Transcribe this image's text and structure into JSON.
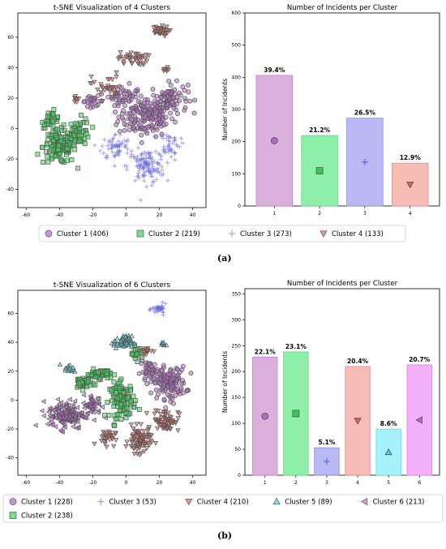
{
  "panel_labels": [
    "(a)",
    "(b)"
  ],
  "chart_data": [
    {
      "id": "tsne4",
      "type": "scatter",
      "title": "t-SNE Visualization of 4 Clusters",
      "xlabel": "",
      "ylabel": "",
      "xlim": [
        -65,
        48
      ],
      "ylim": [
        -52,
        76
      ],
      "xticks": [
        -60,
        -40,
        -20,
        0,
        20,
        40
      ],
      "yticks": [
        -40,
        -20,
        0,
        20,
        40,
        60
      ],
      "series": [
        {
          "name": "Cluster 1",
          "marker": "circle",
          "color": "#b36bc4",
          "blobs": [
            [
              12,
              8,
              15,
              12,
              160
            ],
            [
              26,
              20,
              10,
              9,
              80
            ],
            [
              -2,
              22,
              8,
              6,
              40
            ],
            [
              -20,
              18,
              6,
              3,
              25
            ]
          ]
        },
        {
          "name": "Cluster 2",
          "marker": "square",
          "color": "#3cd65a",
          "blobs": [
            [
              -40,
              -12,
              9,
              10,
              130
            ],
            [
              -28,
              -2,
              6,
              8,
              50
            ],
            [
              -45,
              6,
              5,
              5,
              30
            ]
          ]
        },
        {
          "name": "Cluster 3",
          "marker": "plus",
          "color": "#6a6ae0",
          "blobs": [
            [
              12,
              -25,
              10,
              10,
              120
            ],
            [
              -6,
              -12,
              8,
              8,
              60
            ],
            [
              26,
              -10,
              6,
              8,
              45
            ]
          ]
        },
        {
          "name": "Cluster 4",
          "marker": "tri_down",
          "color": "#e26a5a",
          "blobs": [
            [
              20,
              64,
              5,
              3,
              40
            ],
            [
              4,
              46,
              8,
              4,
              40
            ],
            [
              -12,
              28,
              8,
              8,
              30
            ],
            [
              24,
              38,
              2,
              2,
              8
            ],
            [
              -30,
              20,
              3,
              3,
              8
            ]
          ]
        }
      ],
      "legend": [
        {
          "label": "Cluster 1 (406)",
          "marker": "circle",
          "color": "#b36bc4"
        },
        {
          "label": "Cluster 2 (219)",
          "marker": "square",
          "color": "#3cd65a"
        },
        {
          "label": "Cluster 3 (273)",
          "marker": "plus",
          "color": "#6a6ae0"
        },
        {
          "label": "Cluster 4 (133)",
          "marker": "tri_down",
          "color": "#e26a5a"
        }
      ]
    },
    {
      "id": "bar4",
      "type": "bar",
      "title": "Number of Incidents per Cluster",
      "xlabel": "",
      "ylabel": "Number of Incidents",
      "categories": [
        "1",
        "2",
        "3",
        "4"
      ],
      "values": [
        406,
        219,
        273,
        133
      ],
      "percent_labels": [
        "39.4%",
        "21.2%",
        "26.5%",
        "12.9%"
      ],
      "colors": [
        "#dbb0dc",
        "#8ef0a8",
        "#b9b9f5",
        "#f7bcb6"
      ],
      "edge_colors": [
        "#c47fd0",
        "#5fd886",
        "#8b8be8",
        "#ec8c80"
      ],
      "markers": [
        "circle",
        "square",
        "plus",
        "tri_down"
      ],
      "marker_colors": [
        "#b06ac0",
        "#33cc55",
        "#6060d8",
        "#e0604e"
      ],
      "ylim": [
        0,
        600
      ],
      "yticks": [
        0,
        100,
        200,
        300,
        400,
        500,
        600
      ]
    },
    {
      "id": "tsne6",
      "type": "scatter",
      "title": "t-SNE Visualization of 6 Clusters",
      "xlabel": "",
      "ylabel": "",
      "xlim": [
        -65,
        48
      ],
      "ylim": [
        -52,
        76
      ],
      "xticks": [
        -60,
        -40,
        -20,
        0,
        20,
        40
      ],
      "yticks": [
        -40,
        -20,
        0,
        20,
        40,
        60
      ],
      "series": [
        {
          "name": "Cluster 1",
          "marker": "circle",
          "color": "#b36bc4",
          "blobs": [
            [
              26,
              12,
              9,
              10,
              140
            ],
            [
              14,
              20,
              5,
              6,
              40
            ]
          ]
        },
        {
          "name": "Cluster 2",
          "marker": "square",
          "color": "#3cd65a",
          "blobs": [
            [
              -2,
              0,
              7,
              11,
              110
            ],
            [
              -16,
              18,
              6,
              3,
              50
            ],
            [
              -26,
              12,
              5,
              4,
              40
            ],
            [
              6,
              32,
              4,
              4,
              20
            ]
          ]
        },
        {
          "name": "Cluster 3",
          "marker": "plus",
          "color": "#6a6ae0",
          "blobs": [
            [
              20,
              63,
              4,
              3,
              40
            ]
          ]
        },
        {
          "name": "Cluster 4",
          "marker": "tri_down",
          "color": "#e26a5a",
          "blobs": [
            [
              8,
              -28,
              6,
              8,
              90
            ],
            [
              24,
              -14,
              7,
              7,
              70
            ],
            [
              -12,
              -26,
              5,
              5,
              30
            ],
            [
              12,
              34,
              3,
              3,
              15
            ]
          ]
        },
        {
          "name": "Cluster 5",
          "marker": "tri_up",
          "color": "#4fd8ee",
          "blobs": [
            [
              -2,
              40,
              5,
              4,
              60
            ],
            [
              -34,
              22,
              4,
              3,
              15
            ],
            [
              22,
              38,
              2,
              2,
              8
            ]
          ]
        },
        {
          "name": "Cluster 6",
          "marker": "tri_left",
          "color": "#d36be8",
          "blobs": [
            [
              -36,
              -10,
              10,
              9,
              150
            ],
            [
              -20,
              -4,
              5,
              7,
              50
            ]
          ]
        }
      ],
      "legend": [
        {
          "label": "Cluster 1 (228)",
          "marker": "circle",
          "color": "#b36bc4"
        },
        {
          "label": "Cluster 3 (53)",
          "marker": "plus",
          "color": "#6a6ae0"
        },
        {
          "label": "Cluster 4 (210)",
          "marker": "tri_down",
          "color": "#e26a5a"
        },
        {
          "label": "Cluster 5 (89)",
          "marker": "tri_up",
          "color": "#4fd8ee"
        },
        {
          "label": "Cluster 6 (213)",
          "marker": "tri_left",
          "color": "#d36be8"
        },
        {
          "label": "Cluster 2 (238)",
          "marker": "square",
          "color": "#3cd65a"
        }
      ]
    },
    {
      "id": "bar6",
      "type": "bar",
      "title": "Number of Incidents per Cluster",
      "xlabel": "",
      "ylabel": "Number of Incidents",
      "categories": [
        "1",
        "2",
        "3",
        "4",
        "5",
        "6"
      ],
      "values": [
        228,
        238,
        53,
        210,
        89,
        213
      ],
      "percent_labels": [
        "22.1%",
        "23.1%",
        "5.1%",
        "20.4%",
        "8.6%",
        "20.7%"
      ],
      "colors": [
        "#dbb0dc",
        "#8ef0a8",
        "#b9b9f5",
        "#f7bcb6",
        "#a6f2fb",
        "#f4b0fa"
      ],
      "edge_colors": [
        "#c47fd0",
        "#5fd886",
        "#8b8be8",
        "#ec8c80",
        "#62daf0",
        "#de7fec"
      ],
      "markers": [
        "circle",
        "square",
        "plus",
        "tri_down",
        "tri_up",
        "tri_left"
      ],
      "marker_colors": [
        "#b06ac0",
        "#33cc55",
        "#6060d8",
        "#e0604e",
        "#40d0ea",
        "#cc5ee2"
      ],
      "ylim": [
        0,
        360
      ],
      "yticks": [
        0,
        50,
        100,
        150,
        200,
        250,
        300,
        350
      ]
    }
  ]
}
